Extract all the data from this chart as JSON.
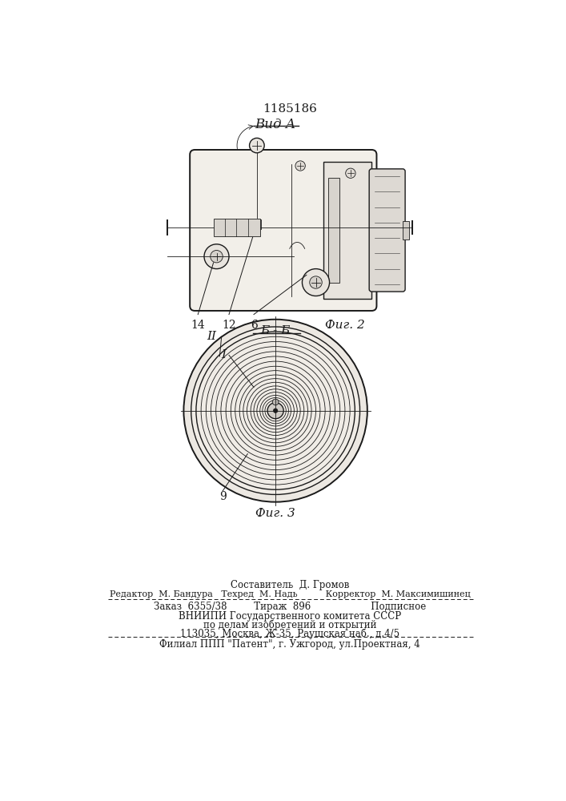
{
  "patent_number": "1185186",
  "fig2_label": "Вид А",
  "fig2_caption": "Фиг. 2",
  "fig3_section": "Б - Б",
  "fig3_caption": "Фиг. 3",
  "label_14": "14",
  "label_12": "12",
  "label_6": "6",
  "label_I": "I",
  "label_II": "II",
  "label_9": "9",
  "footer_line1": "Составитель  Д. Громов",
  "footer_line2": "Редактор  М. Бандура   Техред  М. Надь          Корректор  М. Максимишинец",
  "footer_line3": "Заказ  6355/38         Тираж  896                    Подписное",
  "footer_line4": "ВНИИПИ Государственного комитета СССР",
  "footer_line5": "по делам изобретений и открытий",
  "footer_line6": "113035, Москва, Ж-35, Раушская наб., д.4/5",
  "footer_line7": "Филиал ППП \"Патент\", г. Ужгород, ул.Проектная, 4",
  "line_color": "#1a1a1a"
}
